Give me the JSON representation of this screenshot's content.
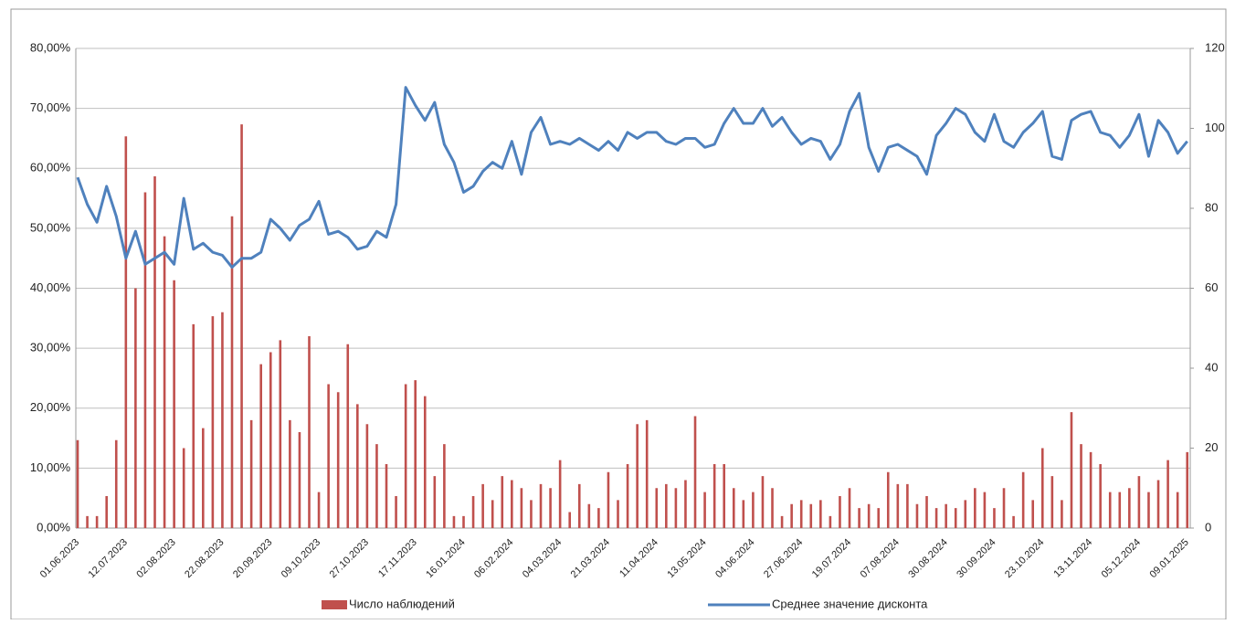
{
  "chart_data": {
    "type": "bar_line",
    "categories": [
      "01.06.2023",
      null,
      null,
      null,
      null,
      "12.07.2023",
      null,
      null,
      null,
      null,
      "02.08.2023",
      null,
      null,
      null,
      null,
      "22.08.2023",
      null,
      null,
      null,
      null,
      "20.09.2023",
      null,
      null,
      null,
      null,
      "09.10.2023",
      null,
      null,
      null,
      null,
      "27.10.2023",
      null,
      null,
      null,
      null,
      "17.11.2023",
      null,
      null,
      null,
      null,
      "16.01.2024",
      null,
      null,
      null,
      null,
      "06.02.2024",
      null,
      null,
      null,
      null,
      "04.03.2024",
      null,
      null,
      null,
      null,
      "21.03.2024",
      null,
      null,
      null,
      null,
      "11.04.2024",
      null,
      null,
      null,
      null,
      "13.05.2024",
      null,
      null,
      null,
      null,
      "04.06.2024",
      null,
      null,
      null,
      null,
      "27.06.2024",
      null,
      null,
      null,
      null,
      "19.07.2024",
      null,
      null,
      null,
      null,
      "07.08.2024",
      null,
      null,
      null,
      null,
      "30.08.2024",
      null,
      null,
      null,
      null,
      "30.09.2024",
      null,
      null,
      null,
      null,
      "23.10.2024",
      null,
      null,
      null,
      null,
      "13.11.2024",
      null,
      null,
      null,
      null,
      "05.12.2024",
      null,
      null,
      null,
      null,
      "09.01.2025"
    ],
    "series": [
      {
        "name": "Число наблюдений",
        "type": "bar",
        "axis": "y2",
        "color": "#c0504d",
        "values": [
          22,
          3,
          3,
          8,
          22,
          98,
          60,
          84,
          88,
          73,
          62,
          20,
          51,
          25,
          53,
          54,
          78,
          101,
          27,
          41,
          44,
          47,
          27,
          24,
          48,
          9,
          36,
          34,
          46,
          31,
          26,
          21,
          16,
          8,
          36,
          37,
          33,
          13,
          21,
          3,
          3,
          8,
          11,
          7,
          13,
          12,
          10,
          7,
          11,
          10,
          17,
          4,
          11,
          6,
          5,
          14,
          7,
          16,
          26,
          27,
          10,
          11,
          10,
          12,
          28,
          9,
          16,
          16,
          10,
          7,
          9,
          13,
          10,
          3,
          6,
          7,
          6,
          7,
          3,
          8,
          10,
          5,
          6,
          5,
          14,
          11,
          11,
          6,
          8,
          5,
          6,
          5,
          7,
          10,
          9,
          5,
          10,
          3,
          14,
          7,
          20,
          13,
          7,
          29,
          21,
          19,
          16,
          9,
          9,
          10,
          13,
          9,
          12,
          17,
          9,
          19
        ]
      },
      {
        "name": "Среднее значение дисконта",
        "type": "line",
        "axis": "y",
        "color": "#4f81bd",
        "values": [
          58.5,
          54,
          51,
          57,
          52,
          45,
          49.5,
          44,
          45,
          46,
          44,
          55,
          46.5,
          47.5,
          46,
          45.5,
          43.5,
          45,
          45,
          46,
          51.5,
          50,
          48,
          50.5,
          51.5,
          54.5,
          49,
          49.5,
          48.5,
          46.5,
          47,
          49.5,
          48.5,
          54,
          73.5,
          70.5,
          68,
          71,
          64,
          61,
          56,
          57,
          59.5,
          61,
          60,
          64.5,
          59,
          66,
          68.5,
          64,
          64.5,
          64,
          65,
          64,
          63,
          64.5,
          63,
          66,
          65,
          66,
          66,
          64.5,
          64,
          65,
          65,
          63.5,
          64,
          67.5,
          70,
          67.5,
          67.5,
          70,
          67,
          68.5,
          66,
          64,
          65,
          64.5,
          61.5,
          64,
          69.5,
          72.5,
          63.5,
          59.5,
          63.5,
          64,
          63,
          62,
          59,
          65.5,
          67.5,
          70,
          69,
          66,
          64.5,
          69,
          64.5,
          63.5,
          66,
          67.5,
          69.5,
          62,
          61.5,
          68,
          69,
          69.5,
          66,
          65.5,
          63.5,
          65.5,
          69,
          62,
          68,
          66,
          62.5,
          64.5
        ]
      }
    ],
    "ylim": [
      0,
      80
    ],
    "yticks": [
      {
        "value": 0,
        "label": "0,00%"
      },
      {
        "value": 10,
        "label": "10,00%"
      },
      {
        "value": 20,
        "label": "20,00%"
      },
      {
        "value": 30,
        "label": "30,00%"
      },
      {
        "value": 40,
        "label": "40,00%"
      },
      {
        "value": 50,
        "label": "50,00%"
      },
      {
        "value": 60,
        "label": "60,00%"
      },
      {
        "value": 70,
        "label": "70,00%"
      },
      {
        "value": 80,
        "label": "80,00%"
      }
    ],
    "y2lim": [
      0,
      120
    ],
    "y2ticks": [
      0,
      20,
      40,
      60,
      80,
      100,
      120
    ],
    "grid": true,
    "legend": "bottom"
  }
}
